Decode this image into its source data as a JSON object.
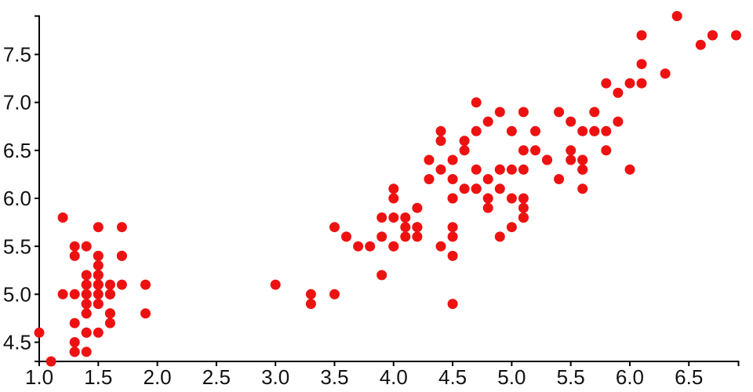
{
  "chart_data": {
    "type": "scatter",
    "title": "",
    "xlabel": "",
    "ylabel": "",
    "legend": false,
    "grid": false,
    "background_color": "#ffffff",
    "axis_color": "#000000",
    "tick_label_color": "#111111",
    "marker": {
      "shape": "circle",
      "radius": 6.5,
      "color": "#ee1111"
    },
    "x_domain": [
      1.0,
      6.92
    ],
    "y_domain": [
      4.3,
      7.9
    ],
    "x_ticks": [
      1.0,
      1.5,
      2.0,
      2.5,
      3.0,
      3.5,
      4.0,
      4.5,
      5.0,
      5.5,
      6.0,
      6.5
    ],
    "y_ticks": [
      4.5,
      5.0,
      5.5,
      6.0,
      6.5,
      7.0,
      7.5
    ],
    "x_tick_labels": [
      "1.0",
      "1.5",
      "2.0",
      "2.5",
      "3.0",
      "3.5",
      "4.0",
      "4.5",
      "5.0",
      "5.5",
      "6.0",
      "6.5"
    ],
    "y_tick_labels": [
      "4.5",
      "5.0",
      "5.5",
      "6.0",
      "6.5",
      "7.0",
      "7.5"
    ],
    "points": [
      [
        1.4,
        5.1
      ],
      [
        1.4,
        4.9
      ],
      [
        1.3,
        4.7
      ],
      [
        1.5,
        4.6
      ],
      [
        1.4,
        5.0
      ],
      [
        1.7,
        5.4
      ],
      [
        1.4,
        4.6
      ],
      [
        1.5,
        5.0
      ],
      [
        1.4,
        4.4
      ],
      [
        1.5,
        4.9
      ],
      [
        1.5,
        5.4
      ],
      [
        1.6,
        4.8
      ],
      [
        1.4,
        4.8
      ],
      [
        1.1,
        4.3
      ],
      [
        1.2,
        5.8
      ],
      [
        1.5,
        5.7
      ],
      [
        1.3,
        5.4
      ],
      [
        1.4,
        5.1
      ],
      [
        1.7,
        5.7
      ],
      [
        1.5,
        5.1
      ],
      [
        1.7,
        5.4
      ],
      [
        1.5,
        5.1
      ],
      [
        1.0,
        4.6
      ],
      [
        1.7,
        5.1
      ],
      [
        1.9,
        4.8
      ],
      [
        1.6,
        5.0
      ],
      [
        1.6,
        5.0
      ],
      [
        1.5,
        5.2
      ],
      [
        1.4,
        5.2
      ],
      [
        1.6,
        4.7
      ],
      [
        1.6,
        4.8
      ],
      [
        1.5,
        5.4
      ],
      [
        1.5,
        5.2
      ],
      [
        1.4,
        5.5
      ],
      [
        1.5,
        4.9
      ],
      [
        1.2,
        5.0
      ],
      [
        1.3,
        5.5
      ],
      [
        1.4,
        4.9
      ],
      [
        1.3,
        4.4
      ],
      [
        1.5,
        5.1
      ],
      [
        1.3,
        5.0
      ],
      [
        1.3,
        4.5
      ],
      [
        1.3,
        4.4
      ],
      [
        1.6,
        5.0
      ],
      [
        1.9,
        5.1
      ],
      [
        1.4,
        4.8
      ],
      [
        1.6,
        5.1
      ],
      [
        1.4,
        4.6
      ],
      [
        1.5,
        5.3
      ],
      [
        1.4,
        5.0
      ],
      [
        4.7,
        7.0
      ],
      [
        4.5,
        6.4
      ],
      [
        4.9,
        6.9
      ],
      [
        4.0,
        5.5
      ],
      [
        4.6,
        6.5
      ],
      [
        4.5,
        5.7
      ],
      [
        4.7,
        6.3
      ],
      [
        3.3,
        4.9
      ],
      [
        4.6,
        6.6
      ],
      [
        3.9,
        5.2
      ],
      [
        3.5,
        5.0
      ],
      [
        4.2,
        5.9
      ],
      [
        4.0,
        6.0
      ],
      [
        4.7,
        6.1
      ],
      [
        3.6,
        5.6
      ],
      [
        4.4,
        6.7
      ],
      [
        4.5,
        5.6
      ],
      [
        4.1,
        5.8
      ],
      [
        4.5,
        6.2
      ],
      [
        3.9,
        5.6
      ],
      [
        4.8,
        5.9
      ],
      [
        4.0,
        6.1
      ],
      [
        4.9,
        6.3
      ],
      [
        4.7,
        6.1
      ],
      [
        4.3,
        6.4
      ],
      [
        4.4,
        6.6
      ],
      [
        4.8,
        6.8
      ],
      [
        5.0,
        6.7
      ],
      [
        4.5,
        6.0
      ],
      [
        3.5,
        5.7
      ],
      [
        3.8,
        5.5
      ],
      [
        3.7,
        5.5
      ],
      [
        3.9,
        5.8
      ],
      [
        5.1,
        6.0
      ],
      [
        4.5,
        5.4
      ],
      [
        4.5,
        6.0
      ],
      [
        4.7,
        6.7
      ],
      [
        4.4,
        6.3
      ],
      [
        4.1,
        5.6
      ],
      [
        4.0,
        5.5
      ],
      [
        4.4,
        5.5
      ],
      [
        4.6,
        6.1
      ],
      [
        4.0,
        5.8
      ],
      [
        3.3,
        5.0
      ],
      [
        4.2,
        5.6
      ],
      [
        4.2,
        5.7
      ],
      [
        4.2,
        5.7
      ],
      [
        4.3,
        6.2
      ],
      [
        3.0,
        5.1
      ],
      [
        4.1,
        5.7
      ],
      [
        6.0,
        6.3
      ],
      [
        5.1,
        5.8
      ],
      [
        5.9,
        7.1
      ],
      [
        5.6,
        6.3
      ],
      [
        5.8,
        6.5
      ],
      [
        6.6,
        7.6
      ],
      [
        4.5,
        4.9
      ],
      [
        6.3,
        7.3
      ],
      [
        5.8,
        6.7
      ],
      [
        6.1,
        7.2
      ],
      [
        5.1,
        6.5
      ],
      [
        5.3,
        6.4
      ],
      [
        5.5,
        6.8
      ],
      [
        5.0,
        5.7
      ],
      [
        5.1,
        5.8
      ],
      [
        5.3,
        6.4
      ],
      [
        5.5,
        6.5
      ],
      [
        6.7,
        7.7
      ],
      [
        6.9,
        7.7
      ],
      [
        5.0,
        6.0
      ],
      [
        5.7,
        6.9
      ],
      [
        4.9,
        5.6
      ],
      [
        6.7,
        7.7
      ],
      [
        4.9,
        6.3
      ],
      [
        5.7,
        6.7
      ],
      [
        6.0,
        7.2
      ],
      [
        4.8,
        6.2
      ],
      [
        4.9,
        6.1
      ],
      [
        5.6,
        6.4
      ],
      [
        5.8,
        7.2
      ],
      [
        6.1,
        7.4
      ],
      [
        6.4,
        7.9
      ],
      [
        5.6,
        6.4
      ],
      [
        5.1,
        6.3
      ],
      [
        5.6,
        6.1
      ],
      [
        6.1,
        7.7
      ],
      [
        5.6,
        6.3
      ],
      [
        5.5,
        6.4
      ],
      [
        4.8,
        6.0
      ],
      [
        5.4,
        6.9
      ],
      [
        5.6,
        6.7
      ],
      [
        5.1,
        6.9
      ],
      [
        5.1,
        5.8
      ],
      [
        5.9,
        6.8
      ],
      [
        5.7,
        6.7
      ],
      [
        5.2,
        6.7
      ],
      [
        5.0,
        6.3
      ],
      [
        5.2,
        6.5
      ],
      [
        5.4,
        6.2
      ],
      [
        5.1,
        5.9
      ]
    ]
  }
}
